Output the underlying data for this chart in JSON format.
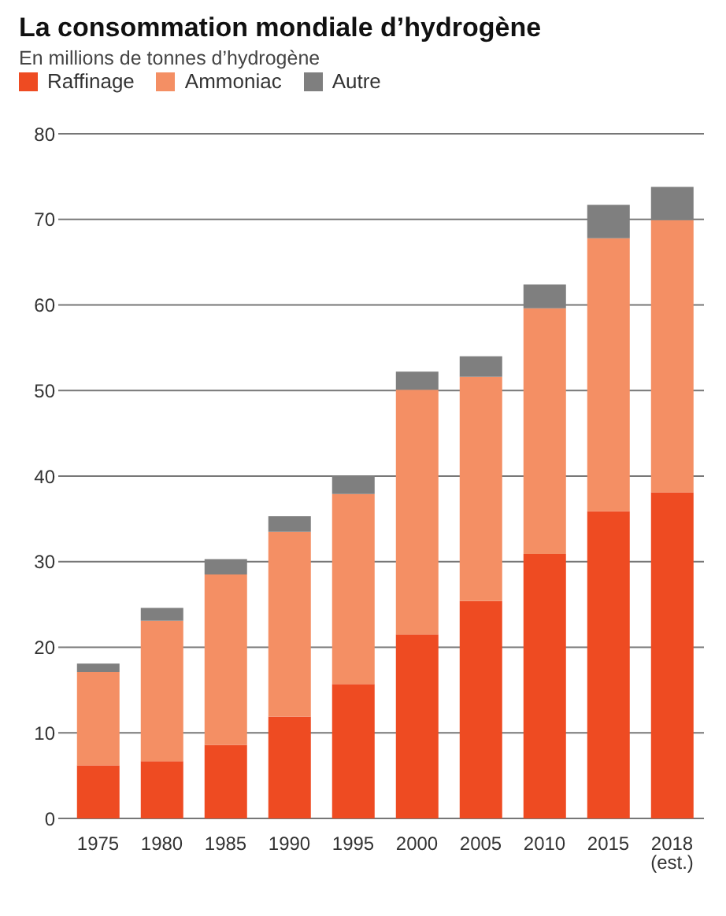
{
  "chart_data": {
    "type": "bar",
    "title": "La consommation mondiale d’hydrogène",
    "subtitle": "En millions de tonnes d’hydrogène",
    "categories": [
      "1975",
      "1980",
      "1985",
      "1990",
      "1995",
      "2000",
      "2005",
      "2010",
      "2015",
      "2018\n(est.)"
    ],
    "stacked": true,
    "series": [
      {
        "name": "Raffinage",
        "color": "#ee4b22",
        "values": [
          6.2,
          6.7,
          8.6,
          11.9,
          15.7,
          21.5,
          25.4,
          30.9,
          35.9,
          38.1
        ]
      },
      {
        "name": "Ammoniac",
        "color": "#f48f64",
        "values": [
          10.9,
          16.4,
          19.9,
          21.6,
          22.2,
          28.6,
          26.2,
          28.7,
          31.9,
          31.8
        ]
      },
      {
        "name": "Autre",
        "color": "#7f7f7f",
        "values": [
          1.0,
          1.5,
          1.8,
          1.8,
          2.2,
          2.1,
          2.4,
          2.8,
          3.9,
          3.9
        ]
      }
    ],
    "ylim": [
      0,
      80
    ],
    "yticks": [
      0,
      10,
      20,
      30,
      40,
      50,
      60,
      70,
      80
    ],
    "grid": "y",
    "legend": "top left"
  }
}
